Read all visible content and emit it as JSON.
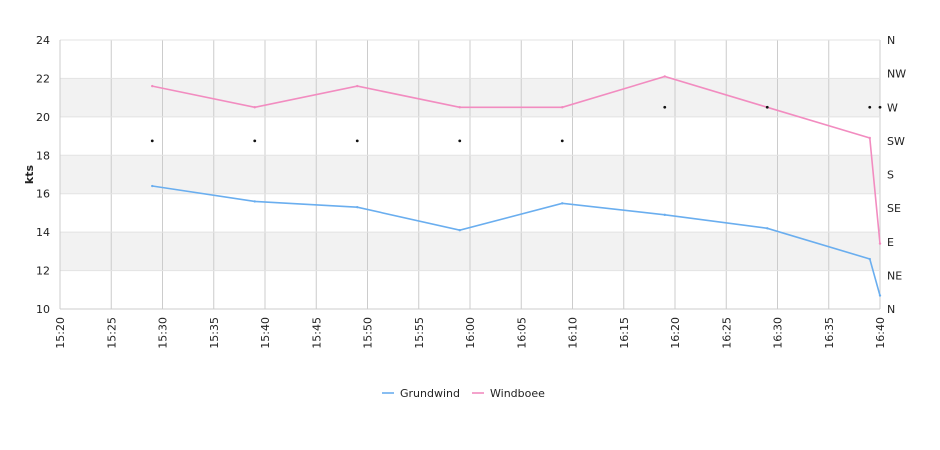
{
  "chart_data": {
    "type": "line",
    "title": "",
    "ylabel": "kts",
    "ylim": [
      10,
      24
    ],
    "yticks": [
      10,
      12,
      14,
      16,
      18,
      20,
      22,
      24
    ],
    "x_axis": {
      "start": "15:20",
      "end": "16:40",
      "ticks": [
        "15:20",
        "15:25",
        "15:30",
        "15:35",
        "15:40",
        "15:45",
        "15:50",
        "15:55",
        "16:00",
        "16:05",
        "16:10",
        "16:15",
        "16:20",
        "16:25",
        "16:30",
        "16:35",
        "16:40"
      ]
    },
    "right_axis": {
      "labels": [
        "N",
        "NE",
        "E",
        "SE",
        "S",
        "SW",
        "W",
        "NW",
        "N"
      ]
    },
    "grid": true,
    "legend": "bottom-center",
    "series": [
      {
        "name": "Grundwind",
        "color": "#6aaeef",
        "points": [
          {
            "x": "15:29",
            "y": 16.4
          },
          {
            "x": "15:39",
            "y": 15.6
          },
          {
            "x": "15:49",
            "y": 15.3
          },
          {
            "x": "15:59",
            "y": 14.1
          },
          {
            "x": "16:09",
            "y": 15.5
          },
          {
            "x": "16:19",
            "y": 14.9
          },
          {
            "x": "16:29",
            "y": 14.2
          },
          {
            "x": "16:39",
            "y": 12.6
          },
          {
            "x": "16:40",
            "y": 10.7
          }
        ]
      },
      {
        "name": "Windboee",
        "color": "#f28cc0",
        "points": [
          {
            "x": "15:29",
            "y": 21.6
          },
          {
            "x": "15:39",
            "y": 20.5
          },
          {
            "x": "15:49",
            "y": 21.6
          },
          {
            "x": "15:59",
            "y": 20.5
          },
          {
            "x": "16:09",
            "y": 20.5
          },
          {
            "x": "16:19",
            "y": 22.1
          },
          {
            "x": "16:29",
            "y": 20.5
          },
          {
            "x": "16:39",
            "y": 18.9
          },
          {
            "x": "16:40",
            "y": 13.4
          }
        ]
      }
    ],
    "direction_points": [
      {
        "x": "15:29",
        "dir": "SW"
      },
      {
        "x": "15:39",
        "dir": "SW"
      },
      {
        "x": "15:49",
        "dir": "SW"
      },
      {
        "x": "15:59",
        "dir": "SW"
      },
      {
        "x": "16:09",
        "dir": "SW"
      },
      {
        "x": "16:19",
        "dir": "W"
      },
      {
        "x": "16:29",
        "dir": "W"
      },
      {
        "x": "16:39",
        "dir": "W"
      },
      {
        "x": "16:40",
        "dir": "W"
      }
    ]
  }
}
